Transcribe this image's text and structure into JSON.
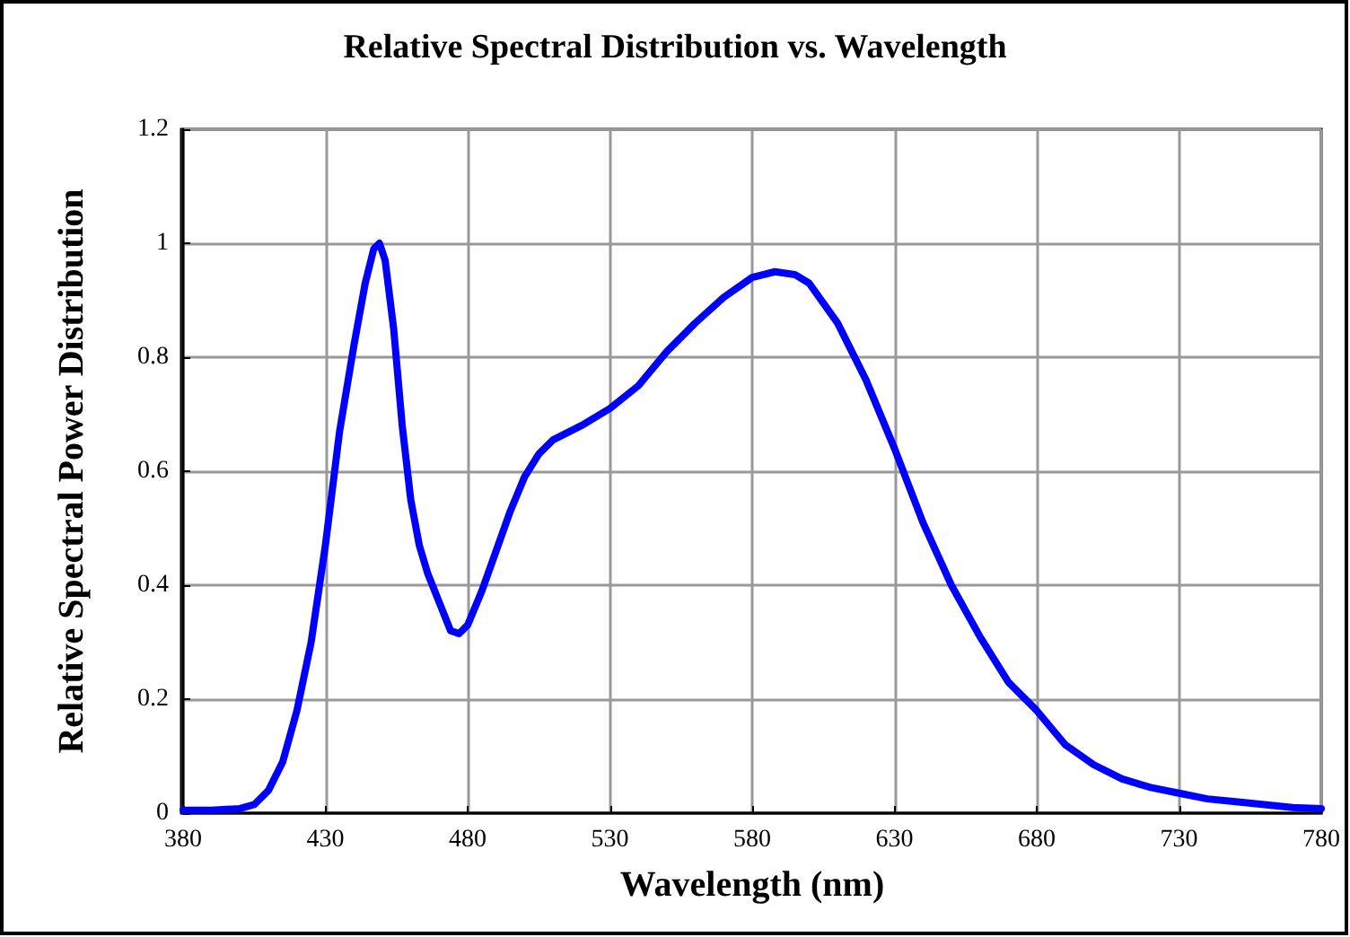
{
  "chart_data": {
    "type": "line",
    "title": "Relative Spectral Distribution vs. Wavelength",
    "xlabel": "Wavelength (nm)",
    "ylabel": "Relative Spectral Power Distribution",
    "x": [
      380,
      390,
      400,
      405,
      410,
      415,
      420,
      425,
      430,
      435,
      440,
      444,
      447,
      449,
      451,
      454,
      457,
      460,
      463,
      466,
      470,
      474,
      477,
      480,
      485,
      490,
      495,
      500,
      505,
      510,
      520,
      530,
      540,
      550,
      560,
      570,
      580,
      588,
      595,
      600,
      610,
      620,
      630,
      640,
      650,
      660,
      670,
      680,
      690,
      700,
      710,
      720,
      730,
      740,
      750,
      760,
      770,
      780
    ],
    "series": [
      {
        "color": "#0000ff",
        "values": [
          0.005,
          0.005,
          0.008,
          0.015,
          0.04,
          0.09,
          0.18,
          0.3,
          0.47,
          0.67,
          0.82,
          0.93,
          0.99,
          1.0,
          0.97,
          0.85,
          0.68,
          0.55,
          0.47,
          0.42,
          0.37,
          0.32,
          0.315,
          0.33,
          0.39,
          0.46,
          0.53,
          0.59,
          0.63,
          0.655,
          0.68,
          0.71,
          0.75,
          0.81,
          0.86,
          0.905,
          0.94,
          0.95,
          0.945,
          0.93,
          0.86,
          0.76,
          0.64,
          0.51,
          0.4,
          0.31,
          0.23,
          0.18,
          0.12,
          0.085,
          0.06,
          0.045,
          0.035,
          0.025,
          0.02,
          0.015,
          0.01,
          0.008
        ]
      }
    ],
    "xlim": [
      380,
      780
    ],
    "xticks": [
      380,
      430,
      480,
      530,
      580,
      630,
      680,
      730,
      780
    ],
    "ylim": [
      0,
      1.2
    ],
    "yticks": [
      0,
      {
        "value": 0.2,
        "label": "0.2"
      },
      {
        "value": 0.4,
        "label": "0.4"
      },
      {
        "value": 0.6,
        "label": "0.6"
      },
      {
        "value": 0.8,
        "label": "0.8"
      },
      1,
      {
        "value": 1.2,
        "label": "1.2"
      }
    ],
    "grid": true,
    "marker": "none",
    "line_style": "solid"
  }
}
